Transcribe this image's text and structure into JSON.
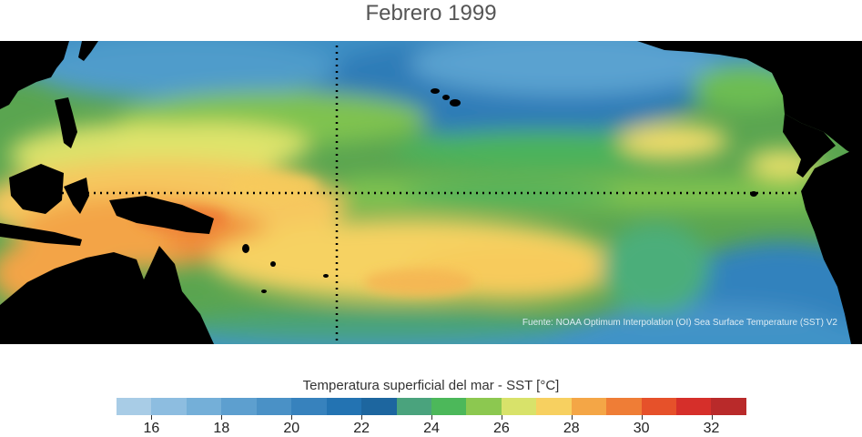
{
  "title": "Febrero 1999",
  "credit": "Fuente: NOAA Optimum Interpolation (OI) Sea Surface Temperature (SST) V2",
  "legend": {
    "title": "Temperatura superficial del mar - SST  [°C]",
    "ticks": [
      "16",
      "18",
      "20",
      "22",
      "24",
      "26",
      "28",
      "30",
      "32"
    ],
    "range": [
      15,
      33
    ],
    "colors": [
      "#a8cce6",
      "#8dbde0",
      "#74afd8",
      "#5d9fcf",
      "#4a91c6",
      "#3782bd",
      "#2373b2",
      "#1d669f",
      "#4aa37d",
      "#4cb85a",
      "#8cc850",
      "#d8e26a",
      "#f7d060",
      "#f4a646",
      "#ef7d36",
      "#e6512a",
      "#d62f2a",
      "#b92a2a"
    ]
  },
  "map": {
    "land_color": "#000000",
    "reference_lines": "dotted"
  }
}
